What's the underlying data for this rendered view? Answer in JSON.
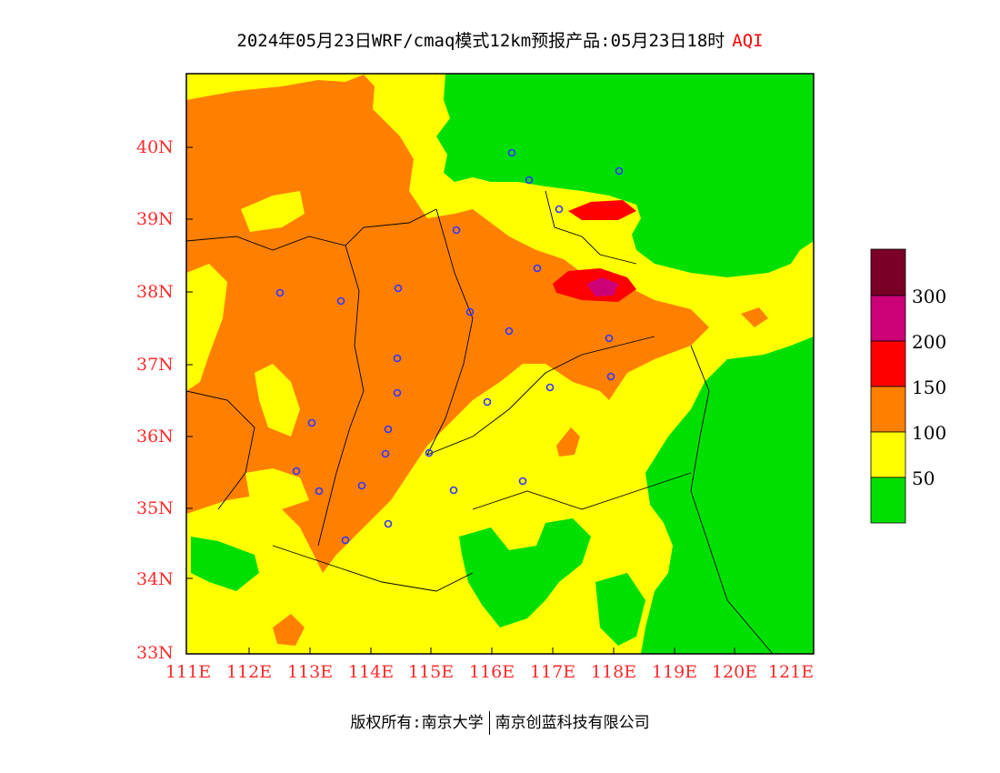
{
  "title": {
    "main": "2024年05月23日WRF/cmaq模式12km预报产品:05月23日18时",
    "variable": "AQI"
  },
  "axes": {
    "lon_labels": [
      "111E",
      "112E",
      "113E",
      "114E",
      "115E",
      "116E",
      "117E",
      "118E",
      "119E",
      "120E",
      "121E"
    ],
    "lat_labels": [
      "40N",
      "39N",
      "38N",
      "37N",
      "36N",
      "35N",
      "34N",
      "33N"
    ]
  },
  "legend": {
    "labels": [
      "300",
      "200",
      "150",
      "100",
      "50"
    ],
    "colors": [
      "#7a0025",
      "#cc0077",
      "#ff0000",
      "#ff8000",
      "#ffff00",
      "#00e000"
    ]
  },
  "map_colors": {
    "good": "#00e000",
    "moderate": "#ffff00",
    "unhealthy_sensitive": "#ff8000",
    "unhealthy": "#ff0000",
    "very_unhealthy": "#cc0077",
    "station": "#3333ff",
    "label": "#ff2a2a"
  },
  "footer": {
    "left": "版权所有:南京大学",
    "right": "南京创蓝科技有限公司"
  }
}
